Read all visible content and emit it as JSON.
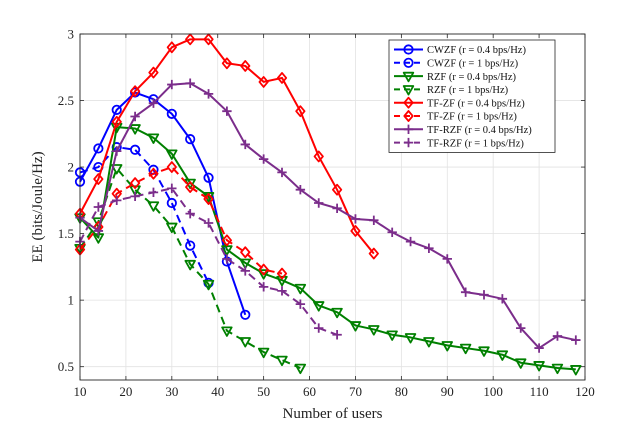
{
  "chart_data": {
    "type": "line",
    "title": "",
    "xlabel": "Number of users",
    "ylabel": "EE (bits/Joule/Hz)",
    "xlim": [
      10,
      120
    ],
    "ylim": [
      0.4,
      3
    ],
    "xticks": [
      10,
      20,
      30,
      40,
      50,
      60,
      70,
      80,
      90,
      100,
      110,
      120
    ],
    "yticks": [
      0.5,
      1,
      1.5,
      2,
      2.5,
      3
    ],
    "grid": true,
    "legend_position": "top-right",
    "series": [
      {
        "name": "CWZF (r = 0.4 bps/Hz)",
        "color": "#0000ff",
        "dashed": false,
        "marker": "circle",
        "x": [
          10,
          14,
          18,
          22,
          26,
          30,
          34,
          38,
          42,
          46
        ],
        "y": [
          1.89,
          2.14,
          2.43,
          2.56,
          2.51,
          2.4,
          2.21,
          1.92,
          1.29,
          0.89
        ]
      },
      {
        "name": "CWZF (r = 1 bps/Hz)",
        "color": "#0000ff",
        "dashed": true,
        "marker": "circle",
        "x": [
          10,
          14,
          18,
          22,
          26,
          30,
          34,
          38
        ],
        "y": [
          1.96,
          2.0,
          2.15,
          2.13,
          1.98,
          1.73,
          1.41,
          1.13
        ]
      },
      {
        "name": "RZF (r = 0.4 bps/Hz)",
        "color": "#008000",
        "dashed": false,
        "marker": "triangle-down",
        "x": [
          10,
          14,
          18,
          22,
          26,
          30,
          34,
          38,
          42,
          46,
          50,
          54,
          58,
          62,
          66,
          70,
          74,
          78,
          82,
          86,
          90,
          94,
          98,
          102,
          106,
          110,
          114,
          118
        ],
        "y": [
          1.62,
          1.47,
          2.3,
          2.29,
          2.22,
          2.1,
          1.88,
          1.78,
          1.38,
          1.28,
          1.2,
          1.15,
          1.09,
          0.96,
          0.91,
          0.81,
          0.78,
          0.74,
          0.72,
          0.69,
          0.66,
          0.64,
          0.62,
          0.59,
          0.53,
          0.51,
          0.49,
          0.48
        ]
      },
      {
        "name": "RZF (r = 1 bps/Hz)",
        "color": "#008000",
        "dashed": true,
        "marker": "triangle-down",
        "x": [
          10,
          14,
          18,
          22,
          26,
          30,
          34,
          38,
          42,
          46,
          50,
          54,
          58
        ],
        "y": [
          1.39,
          1.59,
          1.99,
          1.83,
          1.71,
          1.55,
          1.27,
          1.12,
          0.77,
          0.69,
          0.61,
          0.55,
          0.49
        ]
      },
      {
        "name": "TF-ZF (r = 0.4 bps/Hz)",
        "color": "#ff0000",
        "dashed": false,
        "marker": "diamond",
        "x": [
          10,
          14,
          18,
          22,
          26,
          30,
          34,
          38,
          42,
          46,
          50,
          54,
          58,
          62,
          66,
          70,
          74
        ],
        "y": [
          1.65,
          1.91,
          2.34,
          2.57,
          2.71,
          2.9,
          2.96,
          2.96,
          2.78,
          2.76,
          2.64,
          2.67,
          2.42,
          2.08,
          1.83,
          1.52,
          1.35
        ]
      },
      {
        "name": "TF-ZF (r = 1 bps/Hz)",
        "color": "#ff0000",
        "dashed": true,
        "marker": "diamond",
        "x": [
          10,
          14,
          18,
          22,
          26,
          30,
          34,
          38,
          42,
          46,
          50,
          54
        ],
        "y": [
          1.38,
          1.55,
          1.8,
          1.88,
          1.95,
          2.0,
          1.85,
          1.76,
          1.45,
          1.36,
          1.23,
          1.2
        ]
      },
      {
        "name": "TF-RZF (r = 0.4 bps/Hz)",
        "color": "#7b2d8b",
        "dashed": false,
        "marker": "plus",
        "x": [
          10,
          14,
          18,
          22,
          26,
          30,
          34,
          38,
          42,
          46,
          50,
          54,
          58,
          62,
          66,
          70,
          74,
          78,
          82,
          86,
          90,
          94,
          98,
          102,
          106,
          110,
          114,
          118
        ],
        "y": [
          1.62,
          1.52,
          2.12,
          2.38,
          2.48,
          2.62,
          2.63,
          2.55,
          2.42,
          2.17,
          2.06,
          1.96,
          1.83,
          1.73,
          1.69,
          1.61,
          1.6,
          1.51,
          1.44,
          1.39,
          1.31,
          1.06,
          1.04,
          1.01,
          0.79,
          0.64,
          0.73,
          0.7
        ]
      },
      {
        "name": "TF-RZF (r = 1 bps/Hz)",
        "color": "#7b2d8b",
        "dashed": true,
        "marker": "plus",
        "x": [
          10,
          14,
          18,
          22,
          26,
          30,
          34,
          38,
          42,
          46,
          50,
          54,
          58,
          62,
          66
        ],
        "y": [
          1.44,
          1.7,
          1.75,
          1.78,
          1.81,
          1.84,
          1.65,
          1.58,
          1.31,
          1.22,
          1.1,
          1.07,
          0.97,
          0.79,
          0.74
        ]
      }
    ]
  }
}
